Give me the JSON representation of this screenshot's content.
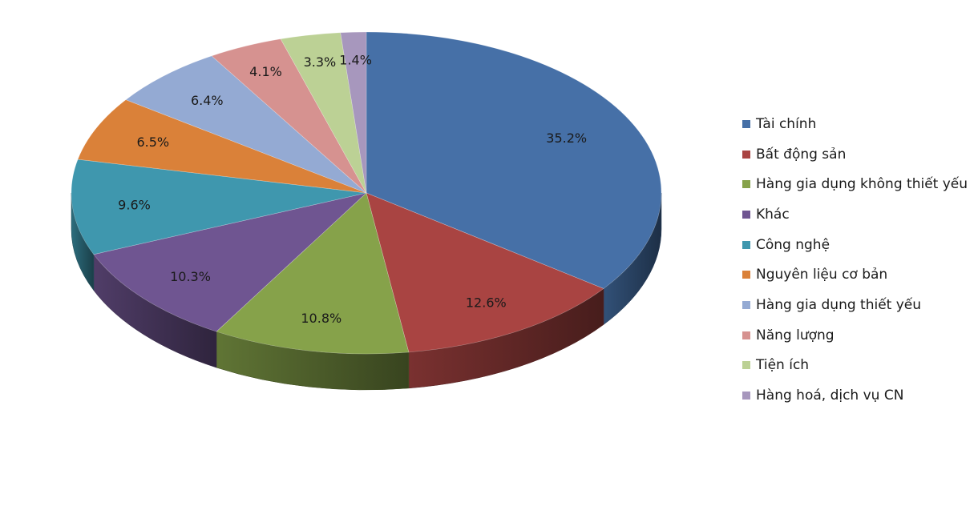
{
  "chart_data": {
    "type": "pie",
    "title": "",
    "style": "3d-exploded-none",
    "legend_position": "right",
    "slices": [
      {
        "label": "Tài chính",
        "value": 35.2,
        "display": "35.2%",
        "color": "#4670A7"
      },
      {
        "label": "Bất động sản",
        "value": 12.6,
        "display": "12.6%",
        "color": "#A94442"
      },
      {
        "label": "Hàng gia dụng không thiết yếu",
        "value": 10.8,
        "display": "10.8%",
        "color": "#86A24A"
      },
      {
        "label": "Khác",
        "value": 10.3,
        "display": "10.3%",
        "color": "#6F5591"
      },
      {
        "label": "Công nghệ",
        "value": 9.6,
        "display": "9.6%",
        "color": "#3F97AE"
      },
      {
        "label": "Nguyên liệu cơ bản",
        "value": 6.5,
        "display": "6.5%",
        "color": "#DA8139"
      },
      {
        "label": "Hàng gia dụng thiết yếu",
        "value": 6.4,
        "display": "6.4%",
        "color": "#94AAD3"
      },
      {
        "label": "Năng lượng",
        "value": 4.1,
        "display": "4.1%",
        "color": "#D69290"
      },
      {
        "label": "Tiện ích",
        "value": 3.3,
        "display": "3.3%",
        "color": "#BCD195"
      },
      {
        "label": "Hàng hoá, dịch vụ CN",
        "value": 1.4,
        "display": "1.4%",
        "color": "#A797BD"
      }
    ]
  }
}
